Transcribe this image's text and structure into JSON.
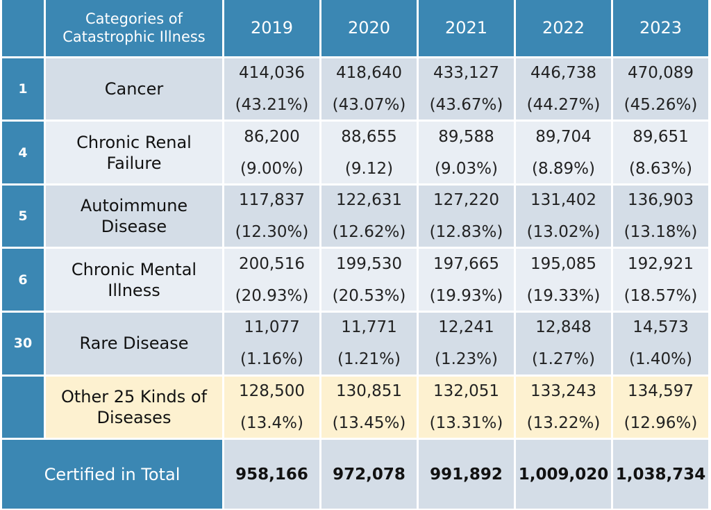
{
  "header": {
    "category_title_line1": "Categories of",
    "category_title_line2": "Catastrophic Illness",
    "years": [
      "2019",
      "2020",
      "2021",
      "2022",
      "2023"
    ]
  },
  "rows": [
    {
      "num": "1",
      "category_line1": "Cancer",
      "category_line2": "",
      "values": [
        "414,036",
        "418,640",
        "433,127",
        "446,738",
        "470,089"
      ],
      "percents": [
        "(43.21%)",
        "(43.07%)",
        "(43.67%)",
        "(44.27%)",
        "(45.26%)"
      ]
    },
    {
      "num": "4",
      "category_line1": "Chronic Renal",
      "category_line2": "Failure",
      "values": [
        "86,200",
        "88,655",
        "89,588",
        "89,704",
        "89,651"
      ],
      "percents": [
        "(9.00%)",
        "(9.12)",
        "(9.03%)",
        "(8.89%)",
        "(8.63%)"
      ]
    },
    {
      "num": "5",
      "category_line1": "Autoimmune",
      "category_line2": "Disease",
      "values": [
        "117,837",
        "122,631",
        "127,220",
        "131,402",
        "136,903"
      ],
      "percents": [
        "(12.30%)",
        "(12.62%)",
        "(12.83%)",
        "(13.02%)",
        "(13.18%)"
      ]
    },
    {
      "num": "6",
      "category_line1": "Chronic Mental",
      "category_line2": "Illness",
      "values": [
        "200,516",
        "199,530",
        "197,665",
        "195,085",
        "192,921"
      ],
      "percents": [
        "(20.93%)",
        "(20.53%)",
        "(19.93%)",
        "(19.33%)",
        "(18.57%)"
      ]
    },
    {
      "num": "30",
      "category_line1": "Rare Disease",
      "category_line2": "",
      "values": [
        "11,077",
        "11,771",
        "12,241",
        "12,848",
        "14,573"
      ],
      "percents": [
        "(1.16%)",
        "(1.21%)",
        "(1.23%)",
        "(1.27%)",
        "(1.40%)"
      ]
    },
    {
      "num": "",
      "category_line1": "Other 25 Kinds of",
      "category_line2": "Diseases",
      "values": [
        "128,500",
        "130,851",
        "132,051",
        "133,243",
        "134,597"
      ],
      "percents": [
        "(13.4%)",
        "(13.45%)",
        "(13.31%)",
        "(13.22%)",
        "(12.96%)"
      ]
    }
  ],
  "total": {
    "label": "Certified in Total",
    "values": [
      "958,166",
      "972,078",
      "991,892",
      "1,009,020",
      "1,038,734"
    ]
  },
  "colors": {
    "header_blue": "#3b87b3",
    "row_dark": "#d4dde7",
    "row_light": "#e9eef4",
    "row_highlight": "#fdf1d0"
  }
}
